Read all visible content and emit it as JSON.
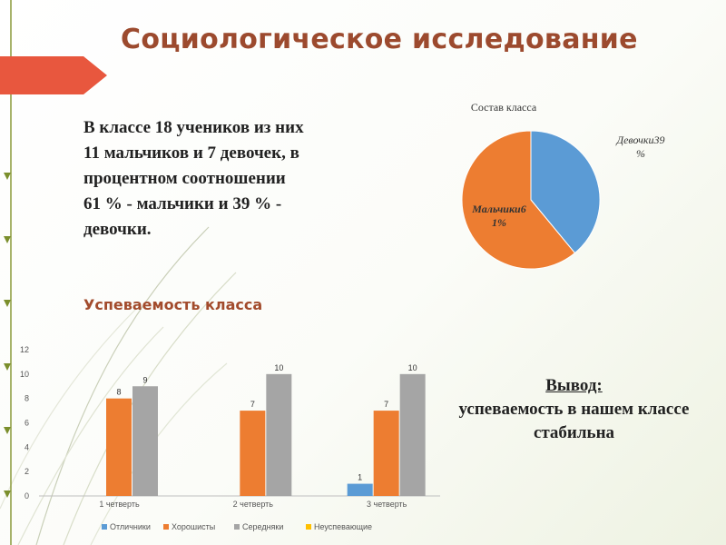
{
  "slide": {
    "title": "Социологическое исследование",
    "intro_lines": [
      "В классе 18 учеников из них",
      "11 мальчиков и 7  девочек, в",
      "процентном соотношении",
      "61 % - мальчики и 39 % -",
      "девочки."
    ],
    "performance_heading": "Успеваемость класса",
    "conclusion_heading": "Вывод:",
    "conclusion_lines": [
      "успеваемость в нашем классе",
      "стабильна"
    ],
    "colors": {
      "accent": "#e8573e",
      "title": "#9c4a2e"
    }
  },
  "chart_data": [
    {
      "type": "pie",
      "title": "Состав класса",
      "slices": [
        {
          "label_lines": [
            "Девочки39",
            "%"
          ],
          "value": 39,
          "color": "#5b9bd5"
        },
        {
          "label_lines": [
            "Мальчики6",
            "1%"
          ],
          "value": 61,
          "color": "#ed7d31"
        }
      ]
    },
    {
      "type": "bar",
      "categories": [
        "1 четверть",
        "2 четверть",
        "3 четверть"
      ],
      "series": [
        {
          "name": "Отличники",
          "values": [
            0,
            0,
            1
          ],
          "labels": [
            "",
            "",
            "1"
          ],
          "color": "#5b9bd5"
        },
        {
          "name": "Хорошисты",
          "values": [
            8,
            7,
            7
          ],
          "labels": [
            "8",
            "7",
            "7"
          ],
          "color": "#ed7d31"
        },
        {
          "name": "Середняки",
          "values": [
            9,
            10,
            10
          ],
          "labels": [
            "9",
            "10",
            "10"
          ],
          "color": "#a5a5a5"
        },
        {
          "name": "Неуспевающие",
          "values": [
            0,
            0,
            0
          ],
          "labels": [
            "",
            "",
            ""
          ],
          "color": "#ffc000"
        }
      ],
      "ylim": [
        0,
        12
      ],
      "yticks": [
        "0",
        "2",
        "4",
        "6",
        "8",
        "10",
        "12"
      ],
      "grid": false,
      "legend": "bottom"
    }
  ]
}
